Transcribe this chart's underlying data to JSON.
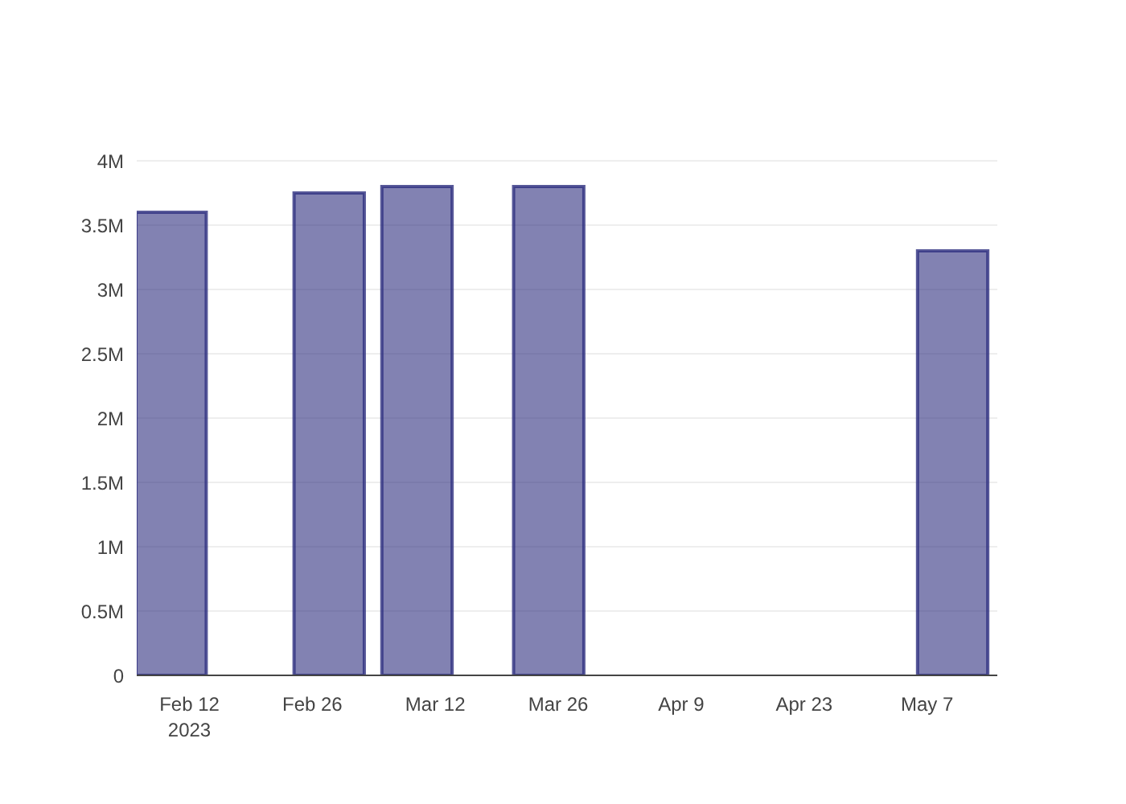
{
  "chart_data": {
    "type": "bar",
    "x": [
      "2023-02-10",
      "2023-02-28",
      "2023-03-10",
      "2023-03-25",
      "2023-05-10"
    ],
    "series": [
      {
        "color": "#2e2f7f",
        "values": [
          3600000,
          3750000,
          3800000,
          3800000,
          3300000
        ]
      }
    ],
    "xlim": [
      "2023-02-06",
      "2023-05-15"
    ],
    "xticks": [
      {
        "value": "2023-02-12",
        "label": "Feb 12\n2023"
      },
      {
        "value": "2023-02-26",
        "label": "Feb 26"
      },
      {
        "value": "2023-03-12",
        "label": "Mar 12"
      },
      {
        "value": "2023-03-26",
        "label": "Mar 26"
      },
      {
        "value": "2023-04-09",
        "label": "Apr 9"
      },
      {
        "value": "2023-04-23",
        "label": "Apr 23"
      },
      {
        "value": "2023-05-07",
        "label": "May 7"
      }
    ],
    "ylim": [
      0,
      4000000
    ],
    "yticks": [
      0,
      {
        "value": 500000,
        "label": "0.5M"
      },
      {
        "value": 1000000,
        "label": "1M"
      },
      {
        "value": 1500000,
        "label": "1.5M"
      },
      {
        "value": 2000000,
        "label": "2M"
      },
      {
        "value": 2500000,
        "label": "2.5M"
      },
      {
        "value": 3000000,
        "label": "3M"
      },
      {
        "value": 3500000,
        "label": "3.5M"
      },
      {
        "value": 4000000,
        "label": "4M"
      }
    ],
    "grid": "y",
    "legend": false
  }
}
